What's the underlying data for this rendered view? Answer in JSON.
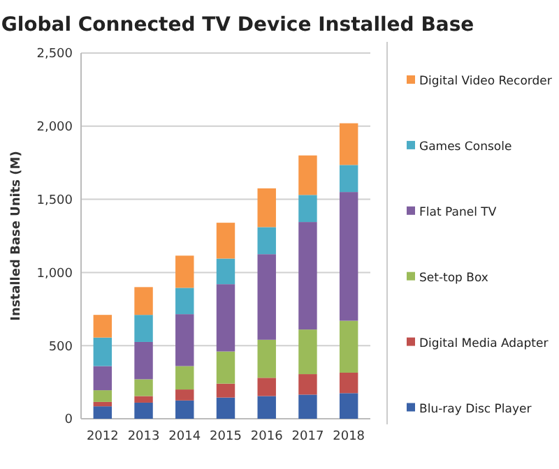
{
  "chart_data": {
    "type": "bar",
    "stacked": true,
    "title": "Global Connected TV Device Installed Base",
    "ylabel": "Installed Base Units (M)",
    "categories": [
      "2012",
      "2013",
      "2014",
      "2015",
      "2016",
      "2017",
      "2018"
    ],
    "series": [
      {
        "name": "Blu-ray Disc Player",
        "color": "#3a62a8",
        "values": [
          85,
          110,
          125,
          145,
          155,
          165,
          175
        ]
      },
      {
        "name": "Digital Media Adapter",
        "color": "#c0504d",
        "values": [
          30,
          45,
          75,
          95,
          125,
          140,
          140
        ]
      },
      {
        "name": "Set-top Box",
        "color": "#9bbb59",
        "values": [
          80,
          115,
          160,
          220,
          260,
          305,
          355
        ]
      },
      {
        "name": "Flat Panel TV",
        "color": "#7f5fa0",
        "values": [
          165,
          255,
          355,
          460,
          585,
          735,
          880
        ]
      },
      {
        "name": "Games Console",
        "color": "#4bacc6",
        "values": [
          195,
          185,
          180,
          175,
          185,
          185,
          185
        ]
      },
      {
        "name": "Digital Video Recorder",
        "color": "#f79646",
        "values": [
          155,
          190,
          220,
          245,
          265,
          270,
          285
        ]
      }
    ],
    "ylim": [
      0,
      2500
    ],
    "yticks": [
      {
        "value": 0,
        "label": "0"
      },
      {
        "value": 500,
        "label": "500"
      },
      {
        "value": 1000,
        "label": "1,000"
      },
      {
        "value": 1500,
        "label": "1,500"
      },
      {
        "value": 2000,
        "label": "2,000"
      },
      {
        "value": 2500,
        "label": "2,500"
      }
    ],
    "grid": "y",
    "legend": "right"
  }
}
